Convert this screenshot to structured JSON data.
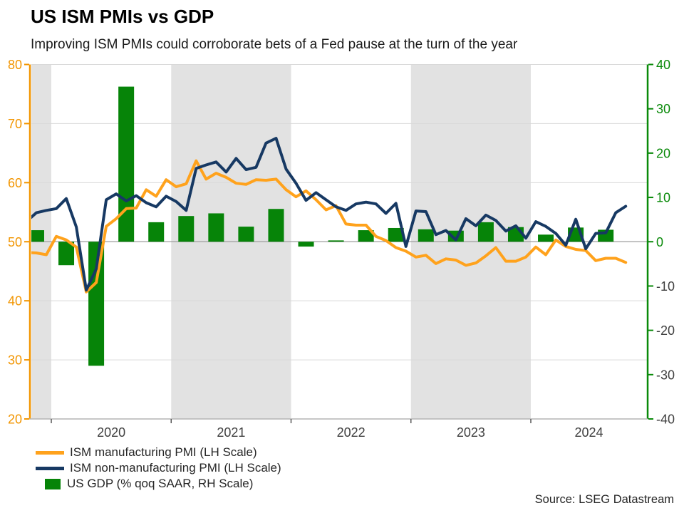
{
  "chart_data": {
    "type": "combo",
    "title": "US ISM PMIs vs GDP",
    "subtitle": "Improving ISM PMIs could corroborate bets of a Fed pause at the turn of the year",
    "source": "Source: LSEG Datastream",
    "x": {
      "months": [
        "2019-10",
        "2019-11",
        "2019-12",
        "2020-01",
        "2020-02",
        "2020-03",
        "2020-04",
        "2020-05",
        "2020-06",
        "2020-07",
        "2020-08",
        "2020-09",
        "2020-10",
        "2020-11",
        "2020-12",
        "2021-01",
        "2021-02",
        "2021-03",
        "2021-04",
        "2021-05",
        "2021-06",
        "2021-07",
        "2021-08",
        "2021-09",
        "2021-10",
        "2021-11",
        "2021-12",
        "2022-01",
        "2022-02",
        "2022-03",
        "2022-04",
        "2022-05",
        "2022-06",
        "2022-07",
        "2022-08",
        "2022-09",
        "2022-10",
        "2022-11",
        "2022-12",
        "2023-01",
        "2023-02",
        "2023-03",
        "2023-04",
        "2023-05",
        "2023-06",
        "2023-07",
        "2023-08",
        "2023-09",
        "2023-10",
        "2023-11",
        "2023-12",
        "2024-01",
        "2024-02",
        "2024-03",
        "2024-04",
        "2024-05",
        "2024-06",
        "2024-07",
        "2024-08",
        "2024-09",
        "2024-10"
      ],
      "year_labels": [
        "2020",
        "2021",
        "2022",
        "2023",
        "2024"
      ]
    },
    "y_left": {
      "range": [
        20,
        80
      ],
      "ticks": [
        80,
        70,
        60,
        50,
        40,
        30,
        20
      ],
      "color": "#F29500"
    },
    "y_right": {
      "range": [
        -40,
        40
      ],
      "ticks": [
        40,
        30,
        20,
        10,
        0,
        -10,
        -20,
        -30,
        -40
      ],
      "color_positive": "#0a8a0a",
      "color_negative": "#404040"
    },
    "series": [
      {
        "name": "ISM manufacturing PMI",
        "type": "line",
        "axis": "left",
        "color": "#FFA21C",
        "values": [
          48.2,
          48.1,
          47.8,
          50.9,
          50.3,
          49.1,
          41.5,
          43.1,
          52.6,
          53.9,
          55.6,
          55.7,
          58.8,
          57.7,
          60.5,
          59.3,
          59.8,
          63.7,
          60.6,
          61.6,
          60.9,
          59.9,
          59.7,
          60.5,
          60.4,
          60.6,
          58.8,
          57.6,
          58.6,
          57.1,
          55.4,
          56.1,
          53.0,
          52.8,
          52.8,
          50.9,
          50.2,
          49.0,
          48.4,
          47.4,
          47.7,
          46.3,
          47.1,
          46.9,
          46.0,
          46.4,
          47.6,
          49.0,
          46.7,
          46.7,
          47.4,
          49.1,
          47.8,
          50.3,
          49.2,
          48.7,
          48.5,
          46.8,
          47.2,
          47.2,
          46.5
        ]
      },
      {
        "name": "ISM non-manufacturing PMI",
        "type": "line",
        "axis": "left",
        "color": "#173963",
        "values": [
          53.4,
          54.9,
          55.3,
          55.6,
          57.3,
          52.5,
          41.8,
          45.4,
          57.1,
          58.1,
          56.9,
          57.8,
          56.6,
          55.9,
          57.7,
          56.8,
          55.3,
          62.4,
          63.0,
          63.5,
          61.8,
          64.1,
          62.2,
          62.6,
          66.7,
          67.5,
          62.3,
          59.9,
          57.0,
          58.3,
          57.1,
          55.9,
          55.3,
          56.4,
          56.7,
          56.4,
          54.8,
          56.5,
          49.2,
          55.2,
          55.1,
          51.2,
          51.9,
          50.3,
          53.9,
          52.7,
          54.5,
          53.6,
          51.8,
          52.7,
          50.6,
          53.4,
          52.6,
          51.4,
          49.4,
          53.8,
          48.8,
          51.4,
          51.5,
          54.9,
          56.0
        ]
      },
      {
        "name": "US GDP (% qoq SAAR)",
        "type": "bar",
        "axis": "right",
        "color": "#068408",
        "quarters": [
          "2019-Q4",
          "2020-Q1",
          "2020-Q2",
          "2020-Q3",
          "2020-Q4",
          "2021-Q1",
          "2021-Q2",
          "2021-Q3",
          "2021-Q4",
          "2022-Q1",
          "2022-Q2",
          "2022-Q3",
          "2022-Q4",
          "2023-Q1",
          "2023-Q2",
          "2023-Q3",
          "2023-Q4",
          "2024-Q1",
          "2024-Q2",
          "2024-Q3"
        ],
        "values": [
          2.6,
          -5.3,
          -28.0,
          35.0,
          4.4,
          5.8,
          6.4,
          3.4,
          7.4,
          -1.1,
          0.3,
          2.6,
          3.1,
          2.8,
          2.5,
          4.4,
          3.3,
          1.6,
          3.2,
          2.7
        ]
      }
    ],
    "shaded_bands": [
      {
        "from": "2019-11",
        "to": "2020-01"
      },
      {
        "from": "2021-01",
        "to": "2022-01"
      },
      {
        "from": "2023-01",
        "to": "2024-01"
      }
    ],
    "band_color": "#e2e2e2",
    "grid_color": "#d9d9d9",
    "zero_line_color": "#9c9c9c",
    "legend": [
      {
        "label": "ISM manufacturing PMI (LH Scale)",
        "swatch": "line",
        "color": "#FFA21C"
      },
      {
        "label": "ISM non-manufacturing PMI (LH Scale)",
        "swatch": "line",
        "color": "#173963"
      },
      {
        "label": "US GDP (% qoq SAAR, RH Scale)",
        "swatch": "square",
        "color": "#068408"
      }
    ]
  }
}
